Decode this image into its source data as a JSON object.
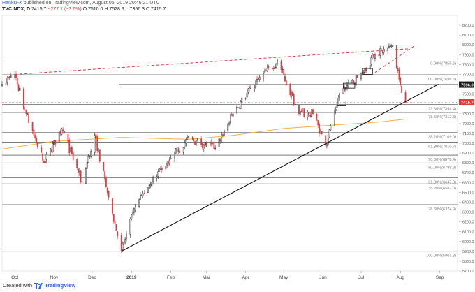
{
  "header": {
    "user": "HanksFX",
    "published_text": "published on TradingView.com, August 05, 2019 20:46:21 UTC",
    "symbol": "TVC:NDX, D",
    "last": "7415.7",
    "change": "−277.1 (−3.6%)",
    "ohlc": "O:7510.0 H:7528.9 L:7356.3 C:7415.7"
  },
  "footer": {
    "created_with": "Created with",
    "brand": "TradingView"
  },
  "colors": {
    "up": "#26282b",
    "down": "#e0393e",
    "ma": "#f5b041",
    "fib": "#7a7a7a",
    "trend": "#111111",
    "resist": "#e0393e",
    "badge_level": "#1a1a1a",
    "badge_price": "#e0393e"
  },
  "chart_data": {
    "type": "candlestick",
    "title": "",
    "symbol": "TVC:NDX",
    "timeframe": "D",
    "ylim": [
      5700,
      8300
    ],
    "y_ticks": [
      5700,
      5800,
      5900,
      6000,
      6100,
      6200,
      6300,
      6400,
      6500,
      6600,
      6700,
      6800,
      6900,
      7000,
      7100,
      7200,
      7300,
      7400,
      7500,
      7600,
      7700,
      7800,
      7900,
      8000,
      8100,
      8200
    ],
    "x_tick_labels": [
      "Oct",
      "Nov",
      "Dec",
      "2019",
      "Feb",
      "Mar",
      "Apr",
      "May",
      "Jun",
      "Jul",
      "Aug",
      "Sep"
    ],
    "x_ticks_bold": [
      "2019"
    ],
    "price_anchors": [
      [
        "2018-09-21",
        7600
      ],
      [
        "2018-10-01",
        7700
      ],
      [
        "2018-10-10",
        7300
      ],
      [
        "2018-10-24",
        6800
      ],
      [
        "2018-11-07",
        7150
      ],
      [
        "2018-11-23",
        6600
      ],
      [
        "2018-12-03",
        7080
      ],
      [
        "2018-12-14",
        6450
      ],
      [
        "2018-12-24",
        5901
      ],
      [
        "2019-01-04",
        6350
      ],
      [
        "2019-01-18",
        6650
      ],
      [
        "2019-02-01",
        6850
      ],
      [
        "2019-02-15",
        7050
      ],
      [
        "2019-03-08",
        6950
      ],
      [
        "2019-03-22",
        7300
      ],
      [
        "2019-04-05",
        7560
      ],
      [
        "2019-04-26",
        7840
      ],
      [
        "2019-05-13",
        7300
      ],
      [
        "2019-05-24",
        7300
      ],
      [
        "2019-06-03",
        6980
      ],
      [
        "2019-06-14",
        7500
      ],
      [
        "2019-06-28",
        7670
      ],
      [
        "2019-07-12",
        7900
      ],
      [
        "2019-07-26",
        7990
      ],
      [
        "2019-07-31",
        7650
      ],
      [
        "2019-08-05",
        7415.7
      ]
    ],
    "series": [
      {
        "name": "",
        "type": "moving_average",
        "points": [
          [
            "2018-09-21",
            6940
          ],
          [
            "2018-11-01",
            7020
          ],
          [
            "2018-12-24",
            7060
          ],
          [
            "2019-02-15",
            7040
          ],
          [
            "2019-03-22",
            7080
          ],
          [
            "2019-05-01",
            7150
          ],
          [
            "2019-06-03",
            7180
          ],
          [
            "2019-07-15",
            7215
          ],
          [
            "2019-08-05",
            7245
          ]
        ]
      }
    ],
    "fib_levels": [
      {
        "label": "0.00%",
        "value": 7855.6
      },
      {
        "label": "100.00%",
        "value": 7696.5
      },
      {
        "label": "23.60%",
        "value": 7394.4
      },
      {
        "label": "78.60%",
        "value": 7312.3
      },
      {
        "label": "38.20%",
        "value": 7109.0
      },
      {
        "label": "61.80%",
        "value": 7010.7
      },
      {
        "label": "50.00%",
        "value": 6878.4
      },
      {
        "label": "50.00%",
        "value": 6798.9
      },
      {
        "label": "61.80%",
        "value": 6647.8
      },
      {
        "label": "38.20%",
        "value": 6587.0
      },
      {
        "label": "78.60%",
        "value": 6374.9
      },
      {
        "label": "100.00%",
        "value": 5901.3
      }
    ],
    "horizontal_level": {
      "value": 7596.0,
      "label": "7596.0"
    },
    "current_price": {
      "value": 7415.7,
      "label": "7415.7"
    },
    "trendline": {
      "from": [
        "2018-12-24",
        5901
      ],
      "to": [
        "2019-08-31",
        7600
      ]
    },
    "resistance_line": {
      "from": [
        "2018-10-01",
        7700
      ],
      "to": [
        "2019-08-07",
        7960
      ]
    },
    "channel_line": {
      "from": [
        "2019-07-12",
        7720
      ],
      "to": [
        "2019-08-12",
        7990
      ]
    },
    "consolidation_boxes": [
      {
        "x": [
          "2019-06-12",
          "2019-06-19"
        ],
        "y": [
          7380,
          7430
        ]
      },
      {
        "x": [
          "2019-06-17",
          "2019-06-26"
        ],
        "y": [
          7560,
          7610
        ]
      },
      {
        "x": [
          "2019-07-02",
          "2019-07-10"
        ],
        "y": [
          7700,
          7760
        ]
      }
    ]
  }
}
